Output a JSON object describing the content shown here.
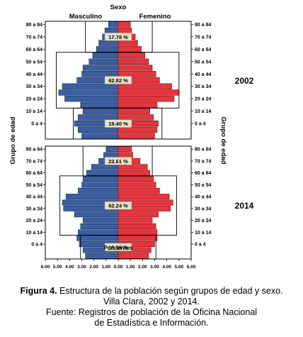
{
  "chart_data": {
    "type": "bar",
    "orientation": "horizontal",
    "subtype": "population-pyramid",
    "header": "Sexo",
    "series_names": [
      "Masculino",
      "Femenino"
    ],
    "ylabel_left": "Grupo de edad",
    "ylabel_right": "Grupo de edad",
    "xlabel": "Porcientos",
    "xlim": [
      -6,
      6
    ],
    "x_ticks": [
      "6.00",
      "5.00",
      "4.00",
      "3.00",
      "2.00",
      "1.00",
      "0.00",
      "1.00",
      "2.00",
      "3.00",
      "4.00",
      "5.00",
      "6.00"
    ],
    "categories": [
      "80 a 84",
      "70 a 74",
      "60 a 64",
      "50 a 54",
      "40 a 44",
      "30 a 34",
      "20 a 24",
      "10 a 14",
      "0 a 4"
    ],
    "colors": {
      "Masculino": "#3a5ea0",
      "Femenino": "#e5343d"
    },
    "panels": [
      {
        "year": "2002",
        "male": [
          0.8,
          1.1,
          1.3,
          1.6,
          1.8,
          2.1,
          2.4,
          2.9,
          3.0,
          3.4,
          4.6,
          4.9,
          4.4,
          3.1,
          2.9,
          3.3,
          3.6,
          3.3,
          3.0
        ],
        "female": [
          1.0,
          1.1,
          1.4,
          1.6,
          1.9,
          2.2,
          2.5,
          2.8,
          3.1,
          3.4,
          4.4,
          5.0,
          4.6,
          3.2,
          2.6,
          2.9,
          3.3,
          3.2,
          3.0
        ],
        "boxes": [
          {
            "label": "17.78 %",
            "male_extent": 2.7,
            "female_extent": 2.8,
            "from_group": 0,
            "to_group": 5
          },
          {
            "label": "62.82 %",
            "male_extent": 5.1,
            "female_extent": 5.0,
            "from_group": 5,
            "to_group": 14
          },
          {
            "label": "19.40 %",
            "male_extent": 3.7,
            "female_extent": 3.6,
            "from_group": 14,
            "to_group": 19
          }
        ]
      },
      {
        "year": "2014",
        "male": [
          1.0,
          1.2,
          1.6,
          2.2,
          2.6,
          2.9,
          3.0,
          3.3,
          4.3,
          4.6,
          4.5,
          3.6,
          2.9,
          3.1,
          3.3,
          3.4,
          3.2,
          2.9,
          2.7
        ],
        "female": [
          1.1,
          1.2,
          1.8,
          2.4,
          2.6,
          2.9,
          3.1,
          3.4,
          4.2,
          4.5,
          4.3,
          3.3,
          2.8,
          3.1,
          3.2,
          3.2,
          3.0,
          2.7,
          2.5
        ],
        "boxes": [
          {
            "label": "22.61 %",
            "male_extent": 2.9,
            "female_extent": 2.8,
            "from_group": 0,
            "to_group": 5
          },
          {
            "label": "62.24 %",
            "male_extent": 4.8,
            "female_extent": 4.8,
            "from_group": 5,
            "to_group": 15
          },
          {
            "label": "15.15 %",
            "male_extent": 3.1,
            "female_extent": 3.1,
            "from_group": 15,
            "to_group": 19
          }
        ]
      }
    ]
  },
  "caption": {
    "figure_label": "Figura 4.",
    "line1": " Estructura de la población según grupos de edad y sexo.",
    "line2": "Villa Clara, 2002 y 2014.",
    "line3": "Fuente: Registros de población de la Oficina Nacional",
    "line4": "de Estadística e Información."
  }
}
